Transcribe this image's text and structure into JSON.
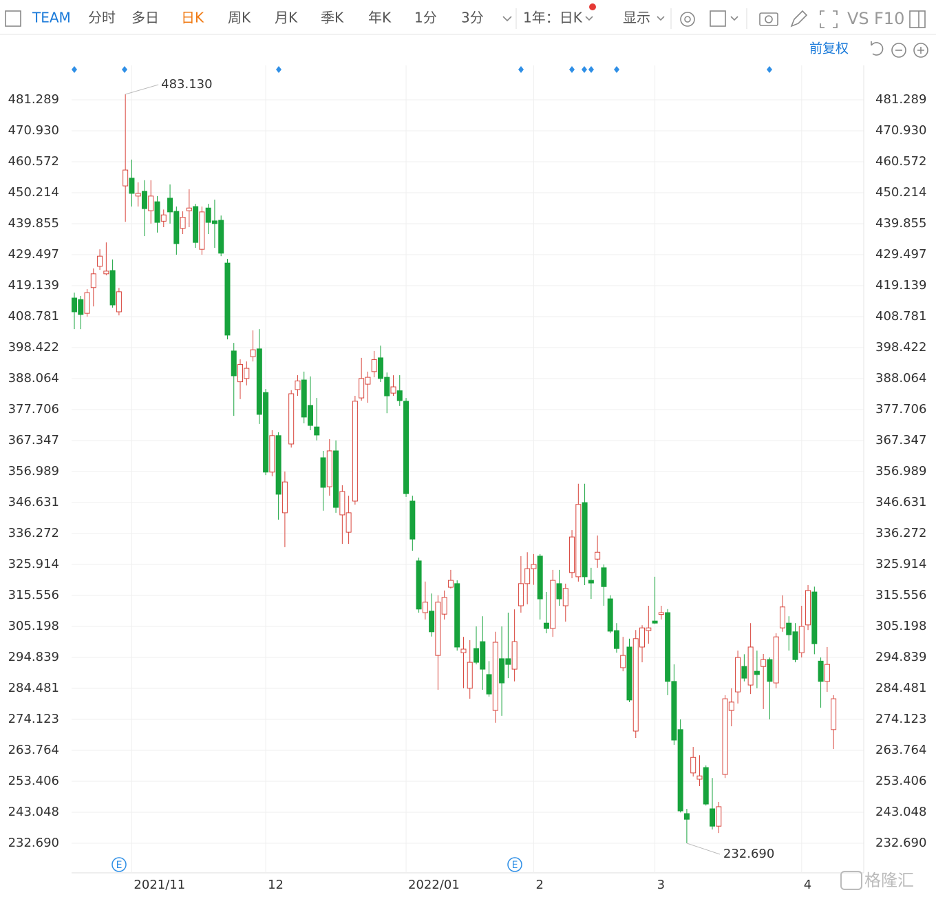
{
  "toolbar": {
    "symbol": "TEAM",
    "tabs": [
      "分时",
      "多日",
      "日K",
      "周K",
      "月K",
      "季K",
      "年K",
      "1分",
      "3分"
    ],
    "period": "1年：日K",
    "display": "显示",
    "vs": "VS",
    "f10": "F10",
    "adjust": "前复权"
  },
  "event_markers": [
    "E",
    "E"
  ],
  "watermark": "格隆汇",
  "chart_data": {
    "type": "candlestick",
    "categories": [
      null,
      null,
      null,
      null,
      null,
      null,
      null,
      null,
      null,
      "2021/11",
      null,
      null,
      null,
      null,
      null,
      null,
      null,
      null,
      null,
      null,
      null,
      null,
      null,
      null,
      null,
      null,
      null,
      null,
      null,
      null,
      "12",
      null,
      null,
      null,
      null,
      null,
      null,
      null,
      null,
      null,
      null,
      null,
      null,
      null,
      null,
      null,
      null,
      null,
      null,
      null,
      null,
      null,
      "2022/01",
      null,
      null,
      null,
      null,
      null,
      null,
      null,
      null,
      null,
      null,
      null,
      null,
      null,
      null,
      null,
      null,
      null,
      null,
      null,
      "2",
      null,
      null,
      null,
      null,
      null,
      null,
      null,
      null,
      null,
      null,
      null,
      null,
      null,
      null,
      null,
      null,
      null,
      null,
      "3",
      null,
      null,
      null,
      null,
      null,
      null,
      null,
      null,
      null,
      null,
      null,
      null,
      null,
      null,
      null,
      null,
      null,
      null,
      null,
      null,
      null,
      null,
      "4",
      null,
      null,
      null,
      null,
      null
    ],
    "open": [
      415,
      414.5,
      409.9,
      418.5,
      425.6,
      423.1,
      424.2,
      410.4,
      452.5,
      455.1,
      449.1,
      450.7,
      444.2,
      447.2,
      440.7,
      448.4,
      444,
      438.3,
      444.2,
      445.6,
      431.3,
      445.1,
      440.8,
      441,
      426.7,
      397.3,
      387,
      388.1,
      395.4,
      398,
      383.4,
      356.8,
      369,
      343.2,
      366.2,
      384.4,
      387.6,
      379.1,
      371.9,
      361.6,
      351.9,
      363.9,
      342.5,
      336.7,
      347.1,
      381.6,
      386.2,
      390.4,
      395,
      388.5,
      383.2,
      384,
      380.5,
      347.1,
      327.1,
      309.8,
      310.3,
      295.5,
      309.3,
      318.3,
      319.5,
      296.4,
      284.5,
      297.8,
      300.1,
      289.1,
      277.1,
      294.4,
      294.4,
      290.9,
      312.1,
      319.5,
      324.5,
      328.7,
      306.3,
      304.5,
      319.5,
      312.1,
      323.2,
      321.8,
      346.6,
      320.6,
      327.7,
      324.8,
      314.4,
      303.8,
      291.4,
      298.3,
      270.2,
      298.3,
      303.8,
      307,
      309.2,
      309.8,
      286.8,
      270.7,
      242.6,
      256.2,
      254.1,
      258,
      244.2,
      238.4,
      255.7,
      277.1,
      283.3,
      291.8,
      285.6,
      290.2,
      291.8,
      294.1,
      286.3,
      304.7,
      306.3,
      303.4,
      296.4,
      305.7,
      316.7,
      293.6,
      286.8,
      270.7
    ],
    "high": [
      416.8,
      415.7,
      418,
      424.9,
      431.3,
      433.6,
      427.9,
      418.4,
      483.13,
      461.3,
      453.7,
      454.4,
      454.4,
      449.1,
      444.6,
      453,
      445.6,
      444,
      451.4,
      446.5,
      445.6,
      446.5,
      447.9,
      442.6,
      428.1,
      400,
      394.5,
      393.8,
      404.2,
      404.6,
      384.6,
      370.8,
      370.1,
      357,
      384.2,
      389.2,
      390.4,
      388.8,
      381.6,
      363.9,
      367.8,
      367.4,
      352.4,
      348.9,
      382.3,
      395,
      390.4,
      397.3,
      399.1,
      390.1,
      389.2,
      389.2,
      381.6,
      348.9,
      328.2,
      320.2,
      316.2,
      315.6,
      317.2,
      324.1,
      320.6,
      301.7,
      300.6,
      305.2,
      308.6,
      293.6,
      303.4,
      305.2,
      309.8,
      310.9,
      328.7,
      330,
      329.4,
      329.4,
      316.7,
      324.1,
      324.1,
      319.5,
      337.4,
      352.9,
      352.9,
      324.8,
      335.6,
      325.9,
      315.6,
      306.3,
      301.7,
      301.1,
      304,
      305.6,
      312.1,
      321.8,
      312.1,
      311,
      292.5,
      274.1,
      244.2,
      264.9,
      262.1,
      258.7,
      254.5,
      246.5,
      282.2,
      284.5,
      297.1,
      295.9,
      306.3,
      297.1,
      296,
      294.8,
      302.9,
      315.6,
      308.6,
      306.3,
      312.1,
      319,
      318.5,
      294.8,
      298.3,
      282.2
    ],
    "low": [
      404.6,
      404.6,
      408.8,
      412.2,
      424.4,
      422.6,
      411.8,
      409.2,
      440.5,
      445.6,
      445.6,
      435.7,
      439.9,
      436.9,
      438.7,
      439.9,
      429.5,
      436.4,
      438.7,
      431.8,
      429.5,
      436.4,
      431.8,
      429,
      401.2,
      375.6,
      381.2,
      385.8,
      393.8,
      372.9,
      355.8,
      355.4,
      340.9,
      331.7,
      365,
      382.3,
      373.1,
      370.8,
      367.4,
      343.9,
      348.9,
      343.2,
      332.8,
      332.8,
      345.9,
      380.7,
      380,
      388.5,
      386.9,
      376.5,
      382.3,
      378.9,
      348.5,
      330.5,
      309.8,
      307.5,
      301.8,
      284,
      307.5,
      317.9,
      297.1,
      284.5,
      281,
      292.5,
      284,
      281.7,
      273,
      275.3,
      287.9,
      286.8,
      309.8,
      312.6,
      319.1,
      307.5,
      302.9,
      301.7,
      312.1,
      306.8,
      321.3,
      320.2,
      319,
      314.4,
      324.8,
      312.1,
      302.9,
      296.4,
      290.2,
      279.9,
      267.9,
      293.2,
      299.4,
      306,
      307.5,
      282.2,
      265.6,
      243,
      232.69,
      255,
      251.8,
      245.3,
      237.3,
      236.1,
      254.5,
      271.8,
      279.4,
      286.8,
      282.6,
      284.5,
      277.6,
      274.1,
      284.5,
      303.4,
      297.1,
      293.2,
      294.8,
      304,
      295.9,
      278,
      283.3,
      264.2
    ],
    "close": [
      410.4,
      409.5,
      416.8,
      423.1,
      429,
      424,
      412.7,
      417.1,
      457.8,
      450,
      450,
      444.9,
      449.1,
      440.3,
      442.8,
      443.8,
      433.2,
      442,
      445.1,
      433.6,
      443.8,
      440.3,
      439.9,
      430,
      402.6,
      389,
      392.8,
      391.5,
      397.7,
      376.1,
      356.8,
      369,
      349.4,
      353.5,
      383,
      387.3,
      375.2,
      372.4,
      369.2,
      351.7,
      363.9,
      345,
      350.3,
      343.2,
      380.5,
      388.1,
      388.5,
      394.4,
      388.1,
      382.3,
      385.3,
      380.7,
      349.6,
      334.4,
      311,
      313.3,
      303.4,
      313.3,
      314.9,
      320.6,
      298.3,
      297.6,
      293.2,
      293.2,
      290.9,
      282.6,
      299.9,
      286.3,
      292.5,
      300.1,
      319.5,
      324.5,
      325.9,
      314.4,
      304.5,
      320.6,
      314.4,
      317.9,
      335.1,
      346,
      321.8,
      319.7,
      330,
      318.5,
      303.6,
      297.8,
      295.5,
      280.6,
      301.1,
      304.7,
      304.7,
      306.3,
      309.8,
      286.8,
      267.2,
      243.5,
      240.7,
      261.4,
      255.2,
      245.8,
      238.4,
      244.9,
      281,
      279.9,
      294.8,
      287.9,
      298.3,
      289.1,
      294.1,
      286.8,
      301.7,
      311.7,
      302.4,
      294.1,
      305.2,
      317.2,
      299.4,
      286.8,
      292.5,
      281
    ],
    "up_color": "#d8443b",
    "down_color": "#17a33c",
    "high_annotation": {
      "value": 483.13,
      "label": "483.130"
    },
    "low_annotation": {
      "value": 232.69,
      "label": "232.690"
    },
    "ylim": [
      222.79,
      492.8
    ],
    "yticks": [
      {
        "value": 232.69,
        "label": "232.690"
      },
      243.048,
      253.406,
      263.764,
      274.123,
      284.481,
      294.839,
      305.198,
      315.556,
      325.914,
      336.272,
      346.631,
      356.989,
      367.347,
      377.706,
      388.064,
      398.422,
      408.781,
      419.139,
      429.497,
      439.855,
      450.214,
      460.572,
      {
        "value": 470.93,
        "label": "470.930"
      },
      481.289
    ],
    "grid": true
  }
}
